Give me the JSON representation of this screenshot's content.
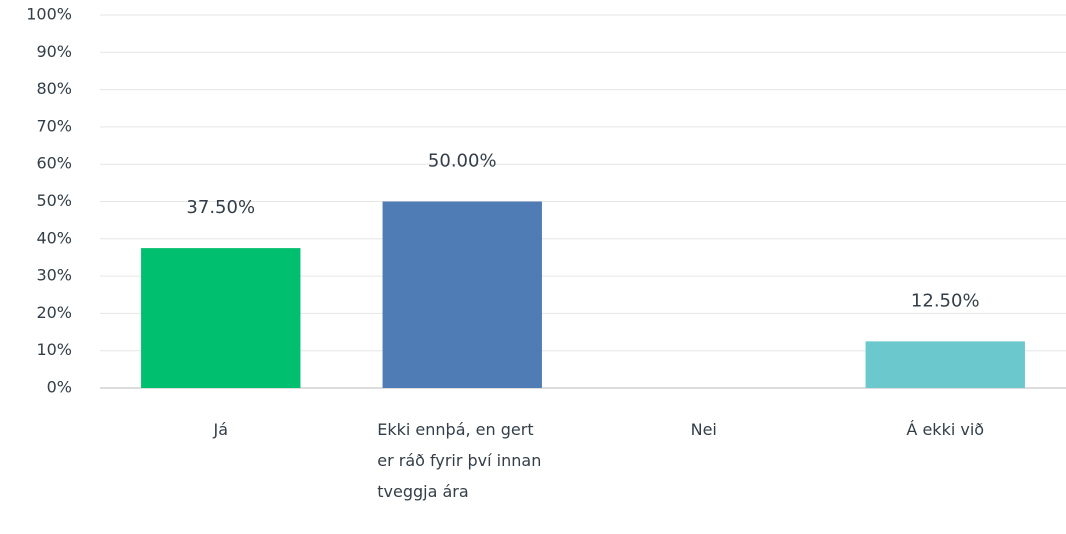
{
  "chart_data": {
    "type": "bar",
    "categories": [
      "Já",
      "Ekki ennþá, en gert er ráð fyrir því innan tveggja ára",
      "Nei",
      "Á ekki við"
    ],
    "values": [
      37.5,
      50,
      0,
      12.5
    ],
    "value_labels": [
      "37.50%",
      "50.00%",
      null,
      "12.50%"
    ],
    "colors": [
      "#00bf6f",
      "#507cb6",
      null,
      "#6bc8cd"
    ],
    "ylim": [
      0,
      100
    ],
    "yticks": [
      {
        "value": 0,
        "label": "0%"
      },
      {
        "value": 10,
        "label": "10%"
      },
      {
        "value": 20,
        "label": "20%"
      },
      {
        "value": 30,
        "label": "30%"
      },
      {
        "value": 40,
        "label": "40%"
      },
      {
        "value": 50,
        "label": "50%"
      },
      {
        "value": 60,
        "label": "60%"
      },
      {
        "value": 70,
        "label": "70%"
      },
      {
        "value": 80,
        "label": "80%"
      },
      {
        "value": 90,
        "label": "90%"
      },
      {
        "value": 100,
        "label": "100%"
      }
    ],
    "grid": true
  }
}
